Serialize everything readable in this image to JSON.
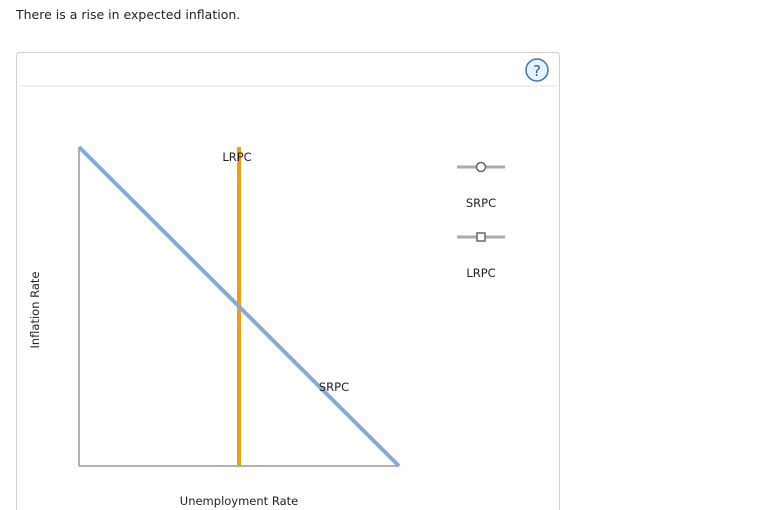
{
  "prompt": "There is a rise in expected inflation.",
  "help_button": "?",
  "graph": {
    "y_axis_label": "Inflation Rate",
    "x_axis_label": "Unemployment Rate",
    "curve_labels": [
      "LRPC",
      "SRPC"
    ]
  },
  "tools": [
    {
      "label": "SRPC"
    },
    {
      "label": "LRPC"
    }
  ]
}
